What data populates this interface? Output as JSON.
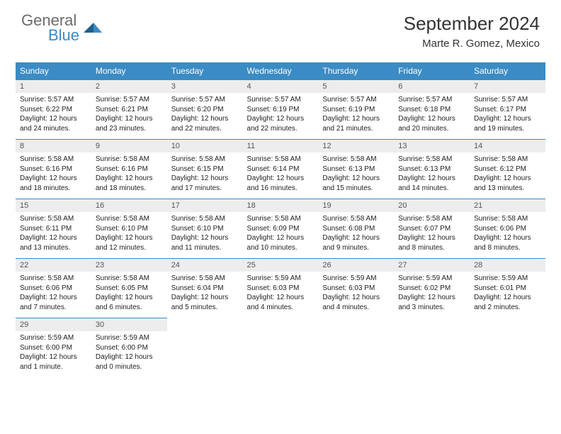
{
  "logo": {
    "general": "General",
    "blue": "Blue"
  },
  "title": "September 2024",
  "location": "Marte R. Gomez, Mexico",
  "colors": {
    "header_bg": "#3b8bc4",
    "header_text": "#ffffff",
    "daynum_bg": "#ededed",
    "row_border": "#3b8bc4",
    "body_text": "#222222",
    "logo_gray": "#6b6b6b",
    "logo_blue": "#3b8bc4"
  },
  "weekdays": [
    "Sunday",
    "Monday",
    "Tuesday",
    "Wednesday",
    "Thursday",
    "Friday",
    "Saturday"
  ],
  "weeks": [
    [
      {
        "n": "1",
        "sr": "5:57 AM",
        "ss": "6:22 PM",
        "dl": "12 hours and 24 minutes."
      },
      {
        "n": "2",
        "sr": "5:57 AM",
        "ss": "6:21 PM",
        "dl": "12 hours and 23 minutes."
      },
      {
        "n": "3",
        "sr": "5:57 AM",
        "ss": "6:20 PM",
        "dl": "12 hours and 22 minutes."
      },
      {
        "n": "4",
        "sr": "5:57 AM",
        "ss": "6:19 PM",
        "dl": "12 hours and 22 minutes."
      },
      {
        "n": "5",
        "sr": "5:57 AM",
        "ss": "6:19 PM",
        "dl": "12 hours and 21 minutes."
      },
      {
        "n": "6",
        "sr": "5:57 AM",
        "ss": "6:18 PM",
        "dl": "12 hours and 20 minutes."
      },
      {
        "n": "7",
        "sr": "5:57 AM",
        "ss": "6:17 PM",
        "dl": "12 hours and 19 minutes."
      }
    ],
    [
      {
        "n": "8",
        "sr": "5:58 AM",
        "ss": "6:16 PM",
        "dl": "12 hours and 18 minutes."
      },
      {
        "n": "9",
        "sr": "5:58 AM",
        "ss": "6:16 PM",
        "dl": "12 hours and 18 minutes."
      },
      {
        "n": "10",
        "sr": "5:58 AM",
        "ss": "6:15 PM",
        "dl": "12 hours and 17 minutes."
      },
      {
        "n": "11",
        "sr": "5:58 AM",
        "ss": "6:14 PM",
        "dl": "12 hours and 16 minutes."
      },
      {
        "n": "12",
        "sr": "5:58 AM",
        "ss": "6:13 PM",
        "dl": "12 hours and 15 minutes."
      },
      {
        "n": "13",
        "sr": "5:58 AM",
        "ss": "6:13 PM",
        "dl": "12 hours and 14 minutes."
      },
      {
        "n": "14",
        "sr": "5:58 AM",
        "ss": "6:12 PM",
        "dl": "12 hours and 13 minutes."
      }
    ],
    [
      {
        "n": "15",
        "sr": "5:58 AM",
        "ss": "6:11 PM",
        "dl": "12 hours and 13 minutes."
      },
      {
        "n": "16",
        "sr": "5:58 AM",
        "ss": "6:10 PM",
        "dl": "12 hours and 12 minutes."
      },
      {
        "n": "17",
        "sr": "5:58 AM",
        "ss": "6:10 PM",
        "dl": "12 hours and 11 minutes."
      },
      {
        "n": "18",
        "sr": "5:58 AM",
        "ss": "6:09 PM",
        "dl": "12 hours and 10 minutes."
      },
      {
        "n": "19",
        "sr": "5:58 AM",
        "ss": "6:08 PM",
        "dl": "12 hours and 9 minutes."
      },
      {
        "n": "20",
        "sr": "5:58 AM",
        "ss": "6:07 PM",
        "dl": "12 hours and 8 minutes."
      },
      {
        "n": "21",
        "sr": "5:58 AM",
        "ss": "6:06 PM",
        "dl": "12 hours and 8 minutes."
      }
    ],
    [
      {
        "n": "22",
        "sr": "5:58 AM",
        "ss": "6:06 PM",
        "dl": "12 hours and 7 minutes."
      },
      {
        "n": "23",
        "sr": "5:58 AM",
        "ss": "6:05 PM",
        "dl": "12 hours and 6 minutes."
      },
      {
        "n": "24",
        "sr": "5:58 AM",
        "ss": "6:04 PM",
        "dl": "12 hours and 5 minutes."
      },
      {
        "n": "25",
        "sr": "5:59 AM",
        "ss": "6:03 PM",
        "dl": "12 hours and 4 minutes."
      },
      {
        "n": "26",
        "sr": "5:59 AM",
        "ss": "6:03 PM",
        "dl": "12 hours and 4 minutes."
      },
      {
        "n": "27",
        "sr": "5:59 AM",
        "ss": "6:02 PM",
        "dl": "12 hours and 3 minutes."
      },
      {
        "n": "28",
        "sr": "5:59 AM",
        "ss": "6:01 PM",
        "dl": "12 hours and 2 minutes."
      }
    ],
    [
      {
        "n": "29",
        "sr": "5:59 AM",
        "ss": "6:00 PM",
        "dl": "12 hours and 1 minute."
      },
      {
        "n": "30",
        "sr": "5:59 AM",
        "ss": "6:00 PM",
        "dl": "12 hours and 0 minutes."
      },
      null,
      null,
      null,
      null,
      null
    ]
  ]
}
